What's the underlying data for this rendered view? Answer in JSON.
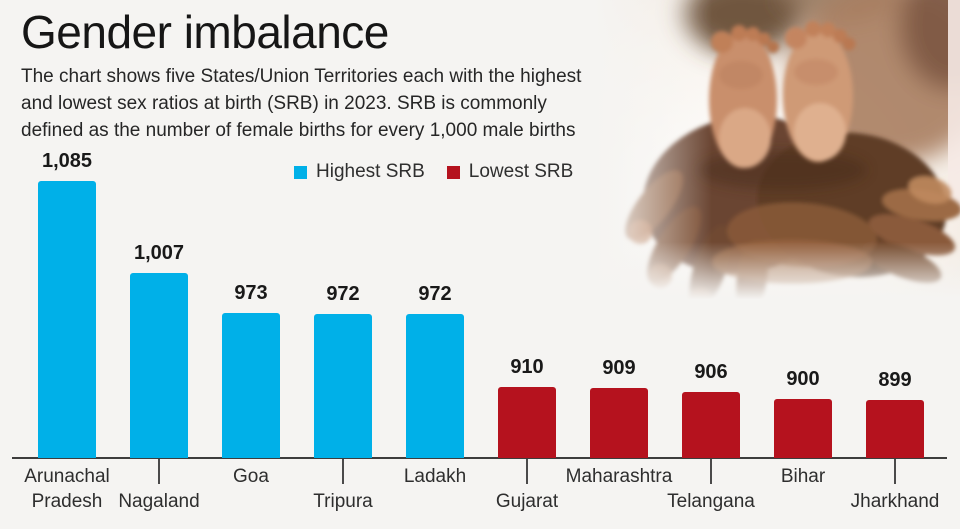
{
  "header": {
    "title": "Gender imbalance",
    "description_lines": [
      "The chart shows five States/Union Territories each with the highest",
      "and lowest sex ratios at birth (SRB) in 2023. SRB is commonly",
      "defined as the number of female births for every 1,000 male births"
    ]
  },
  "photo": {
    "description": "Adult hands cradling a newborn baby's feet"
  },
  "colors": {
    "background": "#f5f4f2",
    "highest_srb": "#00b0e8",
    "lowest_srb": "#b5121e",
    "text": "#191919"
  },
  "chart_data": {
    "type": "bar",
    "title": "",
    "xlabel": "",
    "ylabel": "",
    "ylim": [
      850,
      1100
    ],
    "grid": false,
    "legend_position": "top-center",
    "series": [
      {
        "key": "highest",
        "label": "Highest SRB",
        "color": "#00b0e8"
      },
      {
        "key": "lowest",
        "label": "Lowest SRB",
        "color": "#b5121e"
      }
    ],
    "categories": [
      "Arunachal Pradesh",
      "Nagaland",
      "Goa",
      "Tripura",
      "Ladakh",
      "Gujarat",
      "Maharashtra",
      "Telangana",
      "Bihar",
      "Jharkhand"
    ],
    "values": [
      1085,
      1007,
      973,
      972,
      972,
      910,
      909,
      906,
      900,
      899
    ],
    "bars": [
      {
        "state": "Arunachal Pradesh",
        "value": 1085,
        "label": "1,085",
        "group": "highest"
      },
      {
        "state": "Nagaland",
        "value": 1007,
        "label": "1,007",
        "group": "highest"
      },
      {
        "state": "Goa",
        "value": 973,
        "label": "973",
        "group": "highest"
      },
      {
        "state": "Tripura",
        "value": 972,
        "label": "972",
        "group": "highest"
      },
      {
        "state": "Ladakh",
        "value": 972,
        "label": "972",
        "group": "highest"
      },
      {
        "state": "Gujarat",
        "value": 910,
        "label": "910",
        "group": "lowest"
      },
      {
        "state": "Maharashtra",
        "value": 909,
        "label": "909",
        "group": "lowest"
      },
      {
        "state": "Telangana",
        "value": 906,
        "label": "906",
        "group": "lowest"
      },
      {
        "state": "Bihar",
        "value": 900,
        "label": "900",
        "group": "lowest"
      },
      {
        "state": "Jharkhand",
        "value": 899,
        "label": "899",
        "group": "lowest"
      }
    ]
  }
}
